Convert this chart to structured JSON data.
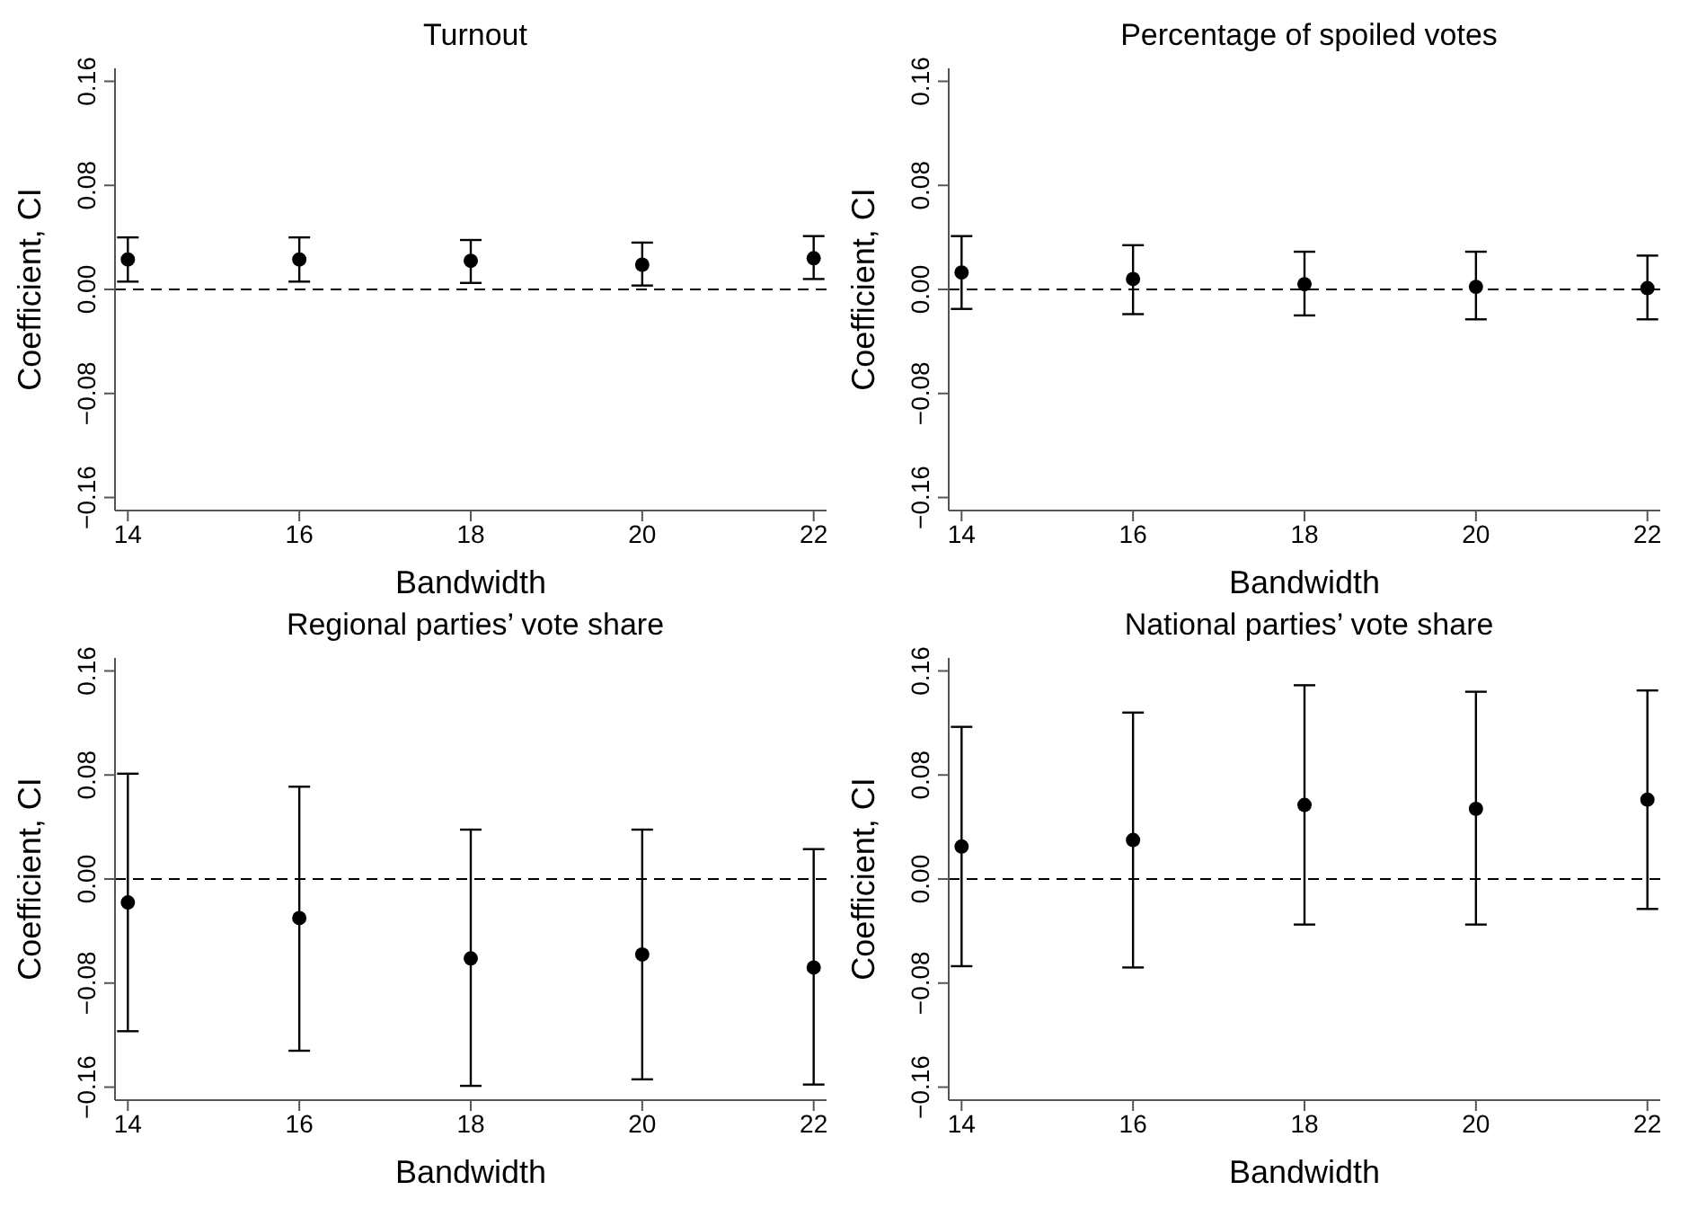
{
  "chart_data": [
    {
      "type": "scatter",
      "title": "Turnout",
      "xlabel": "Bandwidth",
      "ylabel": "Coefficient, CI",
      "marker": "circle",
      "x": [
        14,
        16,
        18,
        20,
        22
      ],
      "xlim": [
        13.85,
        22.15
      ],
      "xticks": [
        14,
        16,
        18,
        20,
        22
      ],
      "ylim": [
        -0.17,
        0.17
      ],
      "yticks": [
        {
          "value": -0.16,
          "label": "−0.16"
        },
        {
          "value": -0.08,
          "label": "−0.08"
        },
        {
          "value": 0,
          "label": "0.00"
        },
        {
          "value": 0.08,
          "label": "0.08"
        },
        {
          "value": 0.16,
          "label": "0.16"
        }
      ],
      "series": [
        {
          "color": "#000000",
          "values": [
            0.023,
            0.023,
            0.022,
            0.019,
            0.024
          ],
          "errors": [
            [
              0.006,
              0.04
            ],
            [
              0.006,
              0.04
            ],
            [
              0.005,
              0.038
            ],
            [
              0.003,
              0.036
            ],
            [
              0.008,
              0.041
            ]
          ]
        }
      ],
      "ref_lines": [
        {
          "axis": "y",
          "value": 0,
          "color": "#000000",
          "line_style": "dashed"
        }
      ]
    },
    {
      "type": "scatter",
      "title": "Percentage of spoiled votes",
      "xlabel": "Bandwidth",
      "ylabel": "Coefficient, CI",
      "marker": "circle",
      "x": [
        14,
        16,
        18,
        20,
        22
      ],
      "xlim": [
        13.85,
        22.15
      ],
      "xticks": [
        14,
        16,
        18,
        20,
        22
      ],
      "ylim": [
        -0.17,
        0.17
      ],
      "yticks": [
        {
          "value": -0.16,
          "label": "−0.16"
        },
        {
          "value": -0.08,
          "label": "−0.08"
        },
        {
          "value": 0,
          "label": "0.00"
        },
        {
          "value": 0.08,
          "label": "0.08"
        },
        {
          "value": 0.16,
          "label": "0.16"
        }
      ],
      "series": [
        {
          "color": "#000000",
          "values": [
            0.013,
            0.008,
            0.004,
            0.002,
            0.001
          ],
          "errors": [
            [
              -0.015,
              0.041
            ],
            [
              -0.019,
              0.034
            ],
            [
              -0.02,
              0.029
            ],
            [
              -0.023,
              0.029
            ],
            [
              -0.023,
              0.026
            ]
          ]
        }
      ],
      "ref_lines": [
        {
          "axis": "y",
          "value": 0,
          "color": "#000000",
          "line_style": "dashed"
        }
      ]
    },
    {
      "type": "scatter",
      "title": "Regional parties’ vote share",
      "xlabel": "Bandwidth",
      "ylabel": "Coefficient, CI",
      "marker": "circle",
      "x": [
        14,
        16,
        18,
        20,
        22
      ],
      "xlim": [
        13.85,
        22.15
      ],
      "xticks": [
        14,
        16,
        18,
        20,
        22
      ],
      "ylim": [
        -0.17,
        0.17
      ],
      "yticks": [
        {
          "value": -0.16,
          "label": "−0.16"
        },
        {
          "value": -0.08,
          "label": "−0.08"
        },
        {
          "value": 0,
          "label": "0.00"
        },
        {
          "value": 0.08,
          "label": "0.08"
        },
        {
          "value": 0.16,
          "label": "0.16"
        }
      ],
      "series": [
        {
          "color": "#000000",
          "values": [
            -0.018,
            -0.03,
            -0.061,
            -0.058,
            -0.068
          ],
          "errors": [
            [
              -0.117,
              0.081
            ],
            [
              -0.132,
              0.071
            ],
            [
              -0.159,
              0.038
            ],
            [
              -0.154,
              0.038
            ],
            [
              -0.158,
              0.023
            ]
          ]
        }
      ],
      "ref_lines": [
        {
          "axis": "y",
          "value": 0,
          "color": "#000000",
          "line_style": "dashed"
        }
      ]
    },
    {
      "type": "scatter",
      "title": "National parties’ vote share",
      "xlabel": "Bandwidth",
      "ylabel": "Coefficient, CI",
      "marker": "circle",
      "x": [
        14,
        16,
        18,
        20,
        22
      ],
      "xlim": [
        13.85,
        22.15
      ],
      "xticks": [
        14,
        16,
        18,
        20,
        22
      ],
      "ylim": [
        -0.17,
        0.17
      ],
      "yticks": [
        {
          "value": -0.16,
          "label": "−0.16"
        },
        {
          "value": -0.08,
          "label": "−0.08"
        },
        {
          "value": 0,
          "label": "0.00"
        },
        {
          "value": 0.08,
          "label": "0.08"
        },
        {
          "value": 0.16,
          "label": "0.16"
        }
      ],
      "series": [
        {
          "color": "#000000",
          "values": [
            0.025,
            0.03,
            0.057,
            0.054,
            0.061
          ],
          "errors": [
            [
              -0.067,
              0.117
            ],
            [
              -0.068,
              0.128
            ],
            [
              -0.035,
              0.149
            ],
            [
              -0.035,
              0.144
            ],
            [
              -0.023,
              0.145
            ]
          ]
        }
      ],
      "ref_lines": [
        {
          "axis": "y",
          "value": 0,
          "color": "#000000",
          "line_style": "dashed"
        }
      ]
    }
  ]
}
